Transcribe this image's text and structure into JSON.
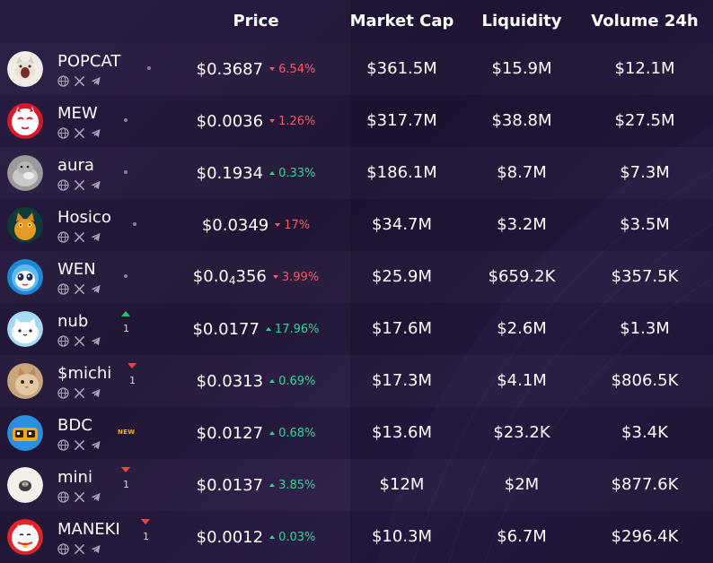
{
  "header": {
    "price": "Price",
    "market_cap": "Market Cap",
    "liquidity": "Liquidity",
    "volume": "Volume 24h"
  },
  "colors": {
    "up": "#34d399",
    "down": "#ef5b6a",
    "new_badge": "#f5b700"
  },
  "rows": [
    {
      "name": "POPCAT",
      "price": "$0.3687",
      "price_sub": "",
      "price_rest": "",
      "change": "6.54%",
      "direction": "down",
      "market_cap": "$361.5M",
      "liquidity": "$15.9M",
      "volume": "$12.1M",
      "rank_dir": "",
      "rank_change": "",
      "badge": "",
      "avatar": "popcat-avatar"
    },
    {
      "name": "MEW",
      "price": "$0.0036",
      "price_sub": "",
      "price_rest": "",
      "change": "1.26%",
      "direction": "down",
      "market_cap": "$317.7M",
      "liquidity": "$38.8M",
      "volume": "$27.5M",
      "rank_dir": "",
      "rank_change": "",
      "badge": "",
      "avatar": "mew-avatar"
    },
    {
      "name": "aura",
      "price": "$0.1934",
      "price_sub": "",
      "price_rest": "",
      "change": "0.33%",
      "direction": "up",
      "market_cap": "$186.1M",
      "liquidity": "$8.7M",
      "volume": "$7.3M",
      "rank_dir": "",
      "rank_change": "",
      "badge": "",
      "avatar": "aura-avatar"
    },
    {
      "name": "Hosico",
      "price": "$0.0349",
      "price_sub": "",
      "price_rest": "",
      "change": "17%",
      "direction": "down",
      "market_cap": "$34.7M",
      "liquidity": "$3.2M",
      "volume": "$3.5M",
      "rank_dir": "",
      "rank_change": "",
      "badge": "",
      "avatar": "hosico-avatar"
    },
    {
      "name": "WEN",
      "price": "$0.0",
      "price_sub": "4",
      "price_rest": "356",
      "change": "3.99%",
      "direction": "down",
      "market_cap": "$25.9M",
      "liquidity": "$659.2K",
      "volume": "$357.5K",
      "rank_dir": "",
      "rank_change": "",
      "badge": "",
      "avatar": "wen-avatar"
    },
    {
      "name": "nub",
      "price": "$0.0177",
      "price_sub": "",
      "price_rest": "",
      "change": "17.96%",
      "direction": "up",
      "market_cap": "$17.6M",
      "liquidity": "$2.6M",
      "volume": "$1.3M",
      "rank_dir": "up",
      "rank_change": "1",
      "badge": "",
      "avatar": "nub-avatar"
    },
    {
      "name": "$michi",
      "price": "$0.0313",
      "price_sub": "",
      "price_rest": "",
      "change": "0.69%",
      "direction": "up",
      "market_cap": "$17.3M",
      "liquidity": "$4.1M",
      "volume": "$806.5K",
      "rank_dir": "down",
      "rank_change": "1",
      "badge": "",
      "avatar": "michi-avatar"
    },
    {
      "name": "BDC",
      "price": "$0.0127",
      "price_sub": "",
      "price_rest": "",
      "change": "0.68%",
      "direction": "up",
      "market_cap": "$13.6M",
      "liquidity": "$23.2K",
      "volume": "$3.4K",
      "rank_dir": "",
      "rank_change": "",
      "badge": "NEW",
      "avatar": "bdc-avatar"
    },
    {
      "name": "mini",
      "price": "$0.0137",
      "price_sub": "",
      "price_rest": "",
      "change": "3.85%",
      "direction": "up",
      "market_cap": "$12M",
      "liquidity": "$2M",
      "volume": "$877.6K",
      "rank_dir": "down",
      "rank_change": "1",
      "badge": "",
      "avatar": "mini-avatar"
    },
    {
      "name": "MANEKI",
      "price": "$0.0012",
      "price_sub": "",
      "price_rest": "",
      "change": "0.03%",
      "direction": "up",
      "market_cap": "$10.3M",
      "liquidity": "$6.7M",
      "volume": "$296.4K",
      "rank_dir": "down",
      "rank_change": "1",
      "badge": "",
      "avatar": "maneki-avatar"
    }
  ]
}
